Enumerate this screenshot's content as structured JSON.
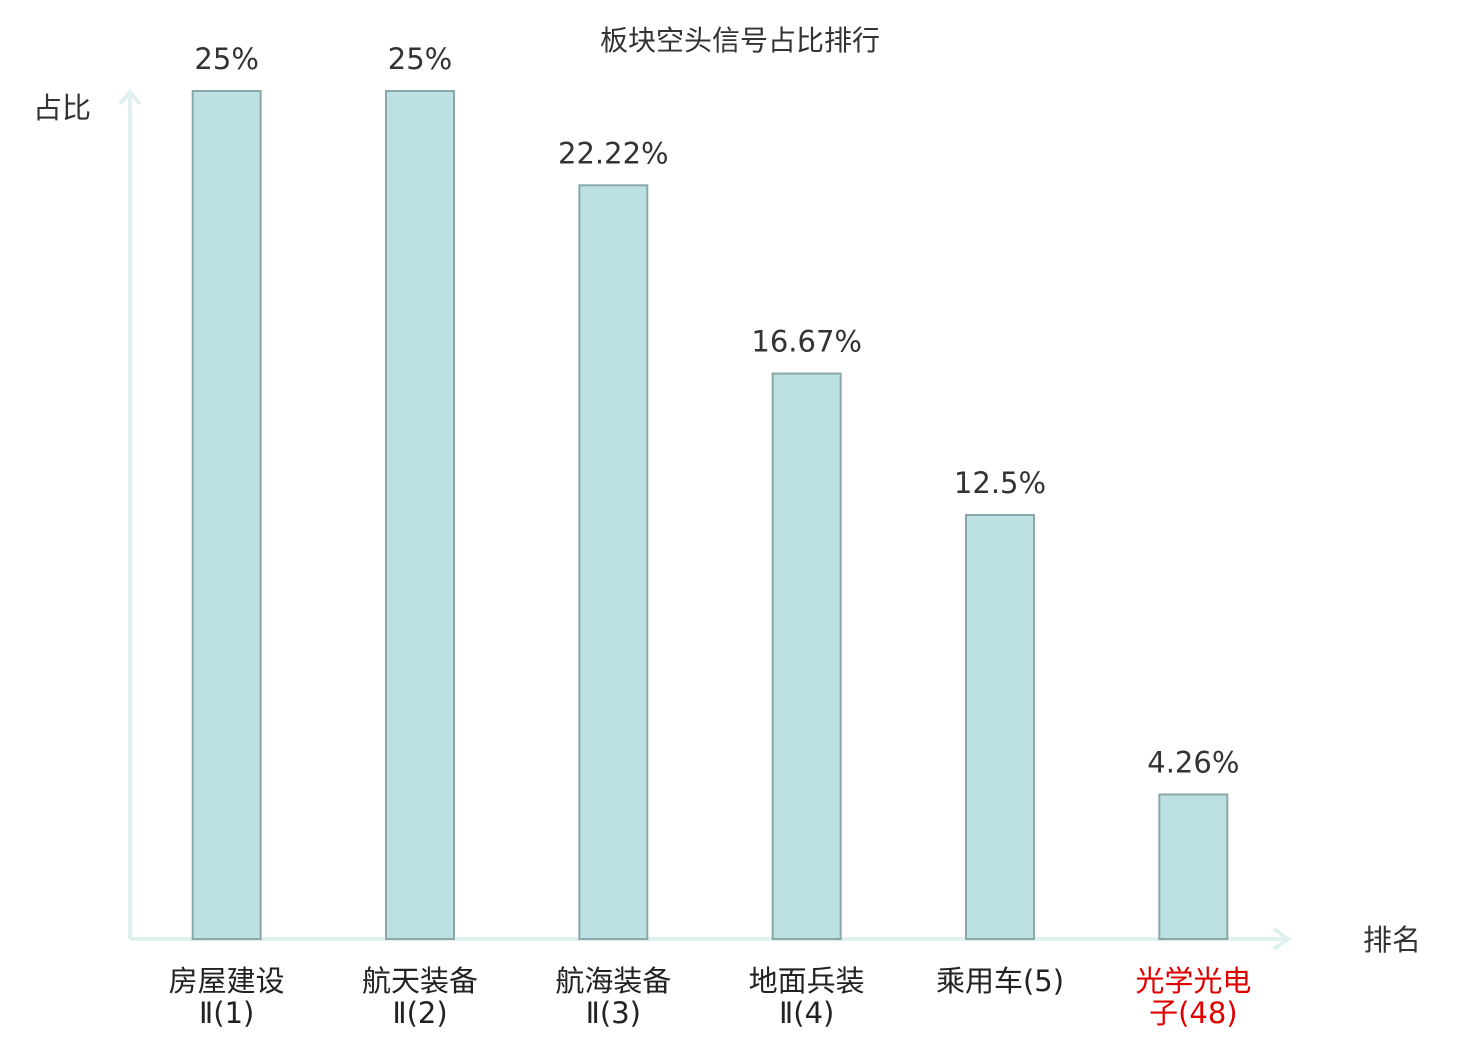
{
  "chart_data": {
    "type": "bar",
    "title": "板块空头信号占比排行",
    "y_label": "占比",
    "x_label": "排名",
    "categories": [
      [
        "房屋建设",
        "Ⅱ(1)"
      ],
      [
        "航天装备",
        "Ⅱ(2)"
      ],
      [
        "航海装备",
        "Ⅱ(3)"
      ],
      [
        "地面兵装",
        "Ⅱ(4)"
      ],
      [
        "乘用车(5)"
      ],
      [
        "光学光电",
        "子(48)"
      ]
    ],
    "category_colors": [
      "#222222",
      "#222222",
      "#222222",
      "#222222",
      "#222222",
      "#e00000"
    ],
    "values": [
      25,
      25,
      22.22,
      16.67,
      12.5,
      4.26
    ],
    "value_labels": [
      "25%",
      "25%",
      "22.22%",
      "16.67%",
      "12.5%",
      "4.26%"
    ],
    "color": "#bde0e3",
    "edge_color": "#8aa8aa",
    "ylim": [
      0,
      25
    ]
  }
}
